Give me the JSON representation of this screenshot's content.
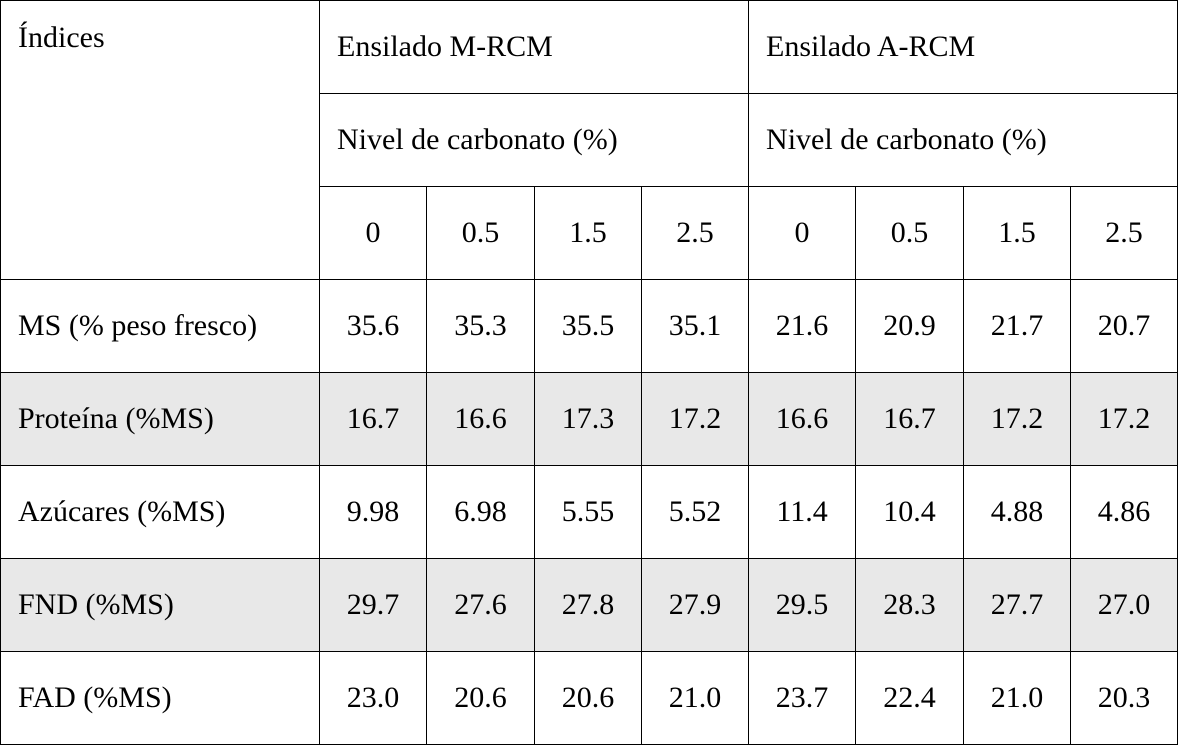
{
  "header": {
    "corner_label": "Índices",
    "groups": [
      {
        "name": "Ensilado M-RCM",
        "sub": "Nivel de carbonato (%)"
      },
      {
        "name": "Ensilado A-RCM",
        "sub": "Nivel de carbonato (%)"
      }
    ],
    "levels": [
      "0",
      "0.5",
      "1.5",
      "2.5",
      "0",
      "0.5",
      "1.5",
      "2.5"
    ]
  },
  "rows": [
    {
      "label": "MS (% peso fresco)",
      "shaded": false,
      "values": [
        "35.6",
        "35.3",
        "35.5",
        "35.1",
        "21.6",
        "20.9",
        "21.7",
        "20.7"
      ]
    },
    {
      "label": "Proteína (%MS)",
      "shaded": true,
      "values": [
        "16.7",
        "16.6",
        "17.3",
        "17.2",
        "16.6",
        "16.7",
        "17.2",
        "17.2"
      ]
    },
    {
      "label": "Azúcares (%MS)",
      "shaded": false,
      "values": [
        "9.98",
        "6.98",
        "5.55",
        "5.52",
        "11.4",
        "10.4",
        "4.88",
        "4.86"
      ]
    },
    {
      "label": "FND (%MS)",
      "shaded": true,
      "values": [
        "29.7",
        "27.6",
        "27.8",
        "27.9",
        "29.5",
        "28.3",
        "27.7",
        "27.0"
      ]
    },
    {
      "label": "FAD (%MS)",
      "shaded": false,
      "values": [
        "23.0",
        "20.6",
        "20.6",
        "21.0",
        "23.7",
        "22.4",
        "21.0",
        "20.3"
      ]
    }
  ],
  "colors": {
    "shaded_row": "#e8e8e8",
    "border": "#000000"
  }
}
